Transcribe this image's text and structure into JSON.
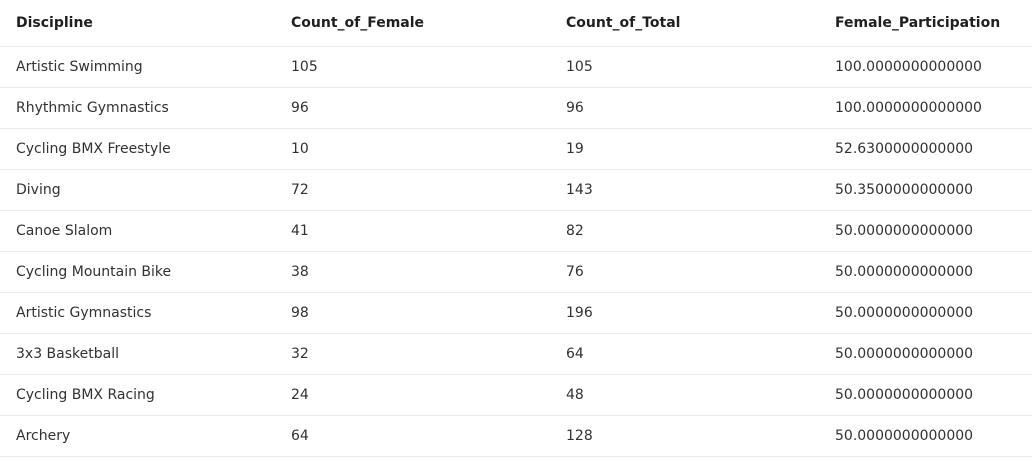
{
  "table": {
    "columns": [
      "Discipline",
      "Count_of_Female",
      "Count_of_Total",
      "Female_Participation"
    ],
    "rows": [
      [
        "Artistic Swimming",
        "105",
        "105",
        "100.0000000000000"
      ],
      [
        "Rhythmic Gymnastics",
        "96",
        "96",
        "100.0000000000000"
      ],
      [
        "Cycling BMX Freestyle",
        "10",
        "19",
        "52.6300000000000"
      ],
      [
        "Diving",
        "72",
        "143",
        "50.3500000000000"
      ],
      [
        "Canoe Slalom",
        "41",
        "82",
        "50.0000000000000"
      ],
      [
        "Cycling Mountain Bike",
        "38",
        "76",
        "50.0000000000000"
      ],
      [
        "Artistic Gymnastics",
        "98",
        "196",
        "50.0000000000000"
      ],
      [
        "3x3 Basketball",
        "32",
        "64",
        "50.0000000000000"
      ],
      [
        "Cycling BMX Racing",
        "24",
        "48",
        "50.0000000000000"
      ],
      [
        "Archery",
        "64",
        "128",
        "50.0000000000000"
      ]
    ]
  }
}
